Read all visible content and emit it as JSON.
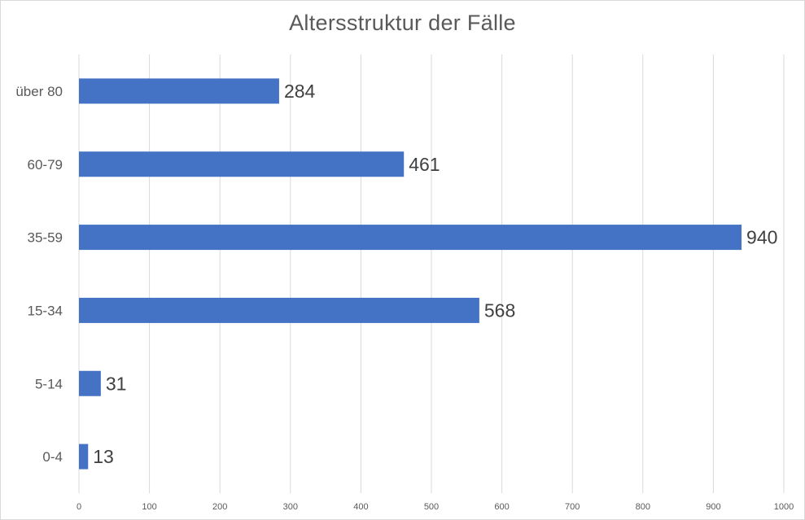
{
  "chart_data": {
    "type": "bar",
    "orientation": "horizontal",
    "title": "Altersstruktur der Fälle",
    "xlabel": "",
    "ylabel": "",
    "categories": [
      "über 80",
      "60-79",
      "35-59",
      "15-34",
      "5-14",
      "0-4"
    ],
    "values": [
      284,
      461,
      940,
      568,
      31,
      13
    ],
    "data_labels": [
      "284",
      "461",
      "940",
      "568",
      "31",
      "13"
    ],
    "xlim": [
      0,
      1000
    ],
    "xticks": [
      0,
      100,
      200,
      300,
      400,
      500,
      600,
      700,
      800,
      900,
      1000
    ],
    "xtick_labels": [
      "0",
      "100",
      "200",
      "300",
      "400",
      "500",
      "600",
      "700",
      "800",
      "900",
      "1000"
    ],
    "grid": true,
    "legend": "none",
    "bar_color": "#4472c4"
  }
}
